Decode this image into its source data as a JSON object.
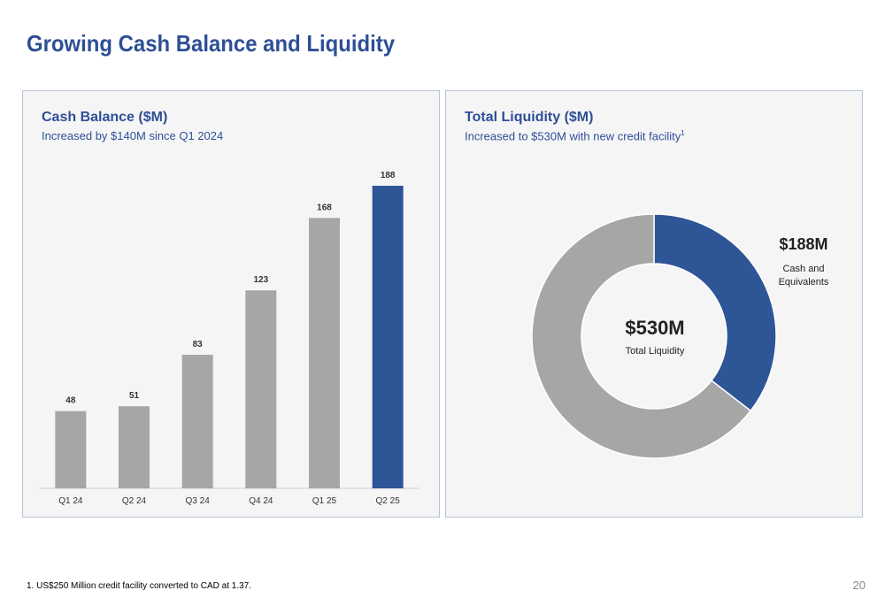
{
  "page": {
    "title": "Growing Cash Balance and Liquidity",
    "footnote": "1. US$250 Million credit facility converted to CAD at 1.37.",
    "page_number": "20"
  },
  "left_panel": {
    "title": "Cash Balance ($M)",
    "subtitle": "Increased by $140M since Q1 2024"
  },
  "right_panel": {
    "title": "Total Liquidity ($M)",
    "subtitle": "Increased to $530M with new credit facility",
    "subtitle_sup": "1",
    "center_value": "$530M",
    "center_label": "Total Liquidity",
    "callout_value": "$188M",
    "callout_label_line1": "Cash and",
    "callout_label_line2": "Equivalents"
  },
  "colors": {
    "accent": "#2E5596",
    "grey": "#A6A6A6",
    "title": "#2E4F96"
  },
  "chart_data": [
    {
      "type": "bar",
      "title": "Cash Balance ($M)",
      "subtitle": "Increased by $140M since Q1 2024",
      "categories": [
        "Q1 24",
        "Q2 24",
        "Q3 24",
        "Q4 24",
        "Q1 25",
        "Q2 25"
      ],
      "values": [
        48,
        51,
        83,
        123,
        168,
        188
      ],
      "highlight_index": 5,
      "ylim": [
        0,
        200
      ],
      "grid": false,
      "legend": "none",
      "data_labels": true
    },
    {
      "type": "pie",
      "style": "donut",
      "title": "Total Liquidity ($M)",
      "subtitle": "Increased to $530M with new credit facility",
      "total": 530,
      "slices": [
        {
          "label": "Cash and Equivalents",
          "value": 188,
          "color": "#2E5596"
        },
        {
          "label": "",
          "value": 342,
          "color": "#A6A6A6"
        }
      ],
      "center_text": "$530M",
      "center_label": "Total Liquidity"
    }
  ]
}
